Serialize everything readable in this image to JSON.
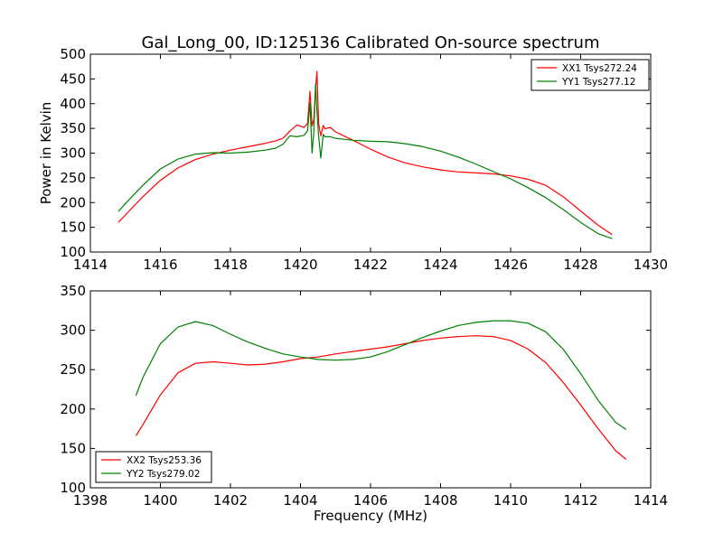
{
  "title": "Gal_Long_00, ID:125136 Calibrated On-source spectrum",
  "colors": {
    "red": "#ff0000",
    "green": "#008000",
    "axes": "#000000",
    "background": "#ffffff"
  },
  "chart_data": [
    {
      "type": "line",
      "title": "Gal_Long_00, ID:125136 Calibrated On-source spectrum",
      "xlabel": "",
      "ylabel": "Power in Kelvin",
      "xlim": [
        1414,
        1430
      ],
      "ylim": [
        100,
        500
      ],
      "xticks": [
        "1414",
        "1416",
        "1418",
        "1420",
        "1422",
        "1424",
        "1426",
        "1428",
        "1430"
      ],
      "yticks": [
        "100",
        "150",
        "200",
        "250",
        "300",
        "350",
        "400",
        "450",
        "500"
      ],
      "grid": false,
      "legend_position": "top-right",
      "series": [
        {
          "name": "XX1 Tsys272.24",
          "color": "#ff0000",
          "x": [
            1414.8,
            1415.0,
            1415.5,
            1416.0,
            1416.5,
            1417.0,
            1417.5,
            1418.0,
            1418.5,
            1419.0,
            1419.3,
            1419.5,
            1419.7,
            1419.9,
            1420.1,
            1420.2,
            1420.27,
            1420.33,
            1420.38,
            1420.43,
            1420.47,
            1420.52,
            1420.58,
            1420.65,
            1420.7,
            1420.85,
            1421.0,
            1421.5,
            1422.0,
            1422.5,
            1423.0,
            1423.5,
            1424.0,
            1424.5,
            1425.0,
            1425.5,
            1426.0,
            1426.5,
            1427.0,
            1427.5,
            1428.0,
            1428.5,
            1428.9
          ],
          "y": [
            160,
            175,
            212,
            245,
            270,
            287,
            298,
            306,
            313,
            320,
            325,
            330,
            345,
            357,
            352,
            360,
            425,
            355,
            368,
            430,
            465,
            360,
            335,
            356,
            349,
            352,
            343,
            326,
            308,
            292,
            280,
            272,
            266,
            262,
            260,
            258,
            254,
            247,
            235,
            212,
            183,
            154,
            135
          ]
        },
        {
          "name": "YY1 Tsys277.12",
          "color": "#008000",
          "x": [
            1414.8,
            1415.0,
            1415.5,
            1416.0,
            1416.5,
            1417.0,
            1417.5,
            1418.0,
            1418.5,
            1419.0,
            1419.3,
            1419.5,
            1419.7,
            1419.9,
            1420.1,
            1420.2,
            1420.27,
            1420.33,
            1420.38,
            1420.43,
            1420.47,
            1420.52,
            1420.58,
            1420.65,
            1420.7,
            1420.85,
            1421.0,
            1421.5,
            1422.0,
            1422.5,
            1423.0,
            1423.5,
            1424.0,
            1424.5,
            1425.0,
            1425.5,
            1426.0,
            1426.5,
            1427.0,
            1427.5,
            1428.0,
            1428.5,
            1428.9
          ],
          "y": [
            182,
            198,
            235,
            268,
            288,
            298,
            301,
            300,
            302,
            306,
            310,
            318,
            335,
            333,
            336,
            345,
            402,
            300,
            342,
            440,
            385,
            333,
            290,
            338,
            333,
            333,
            330,
            326,
            324,
            323,
            319,
            313,
            304,
            292,
            278,
            263,
            248,
            230,
            210,
            186,
            160,
            137,
            127
          ]
        }
      ]
    },
    {
      "type": "line",
      "title": "",
      "xlabel": "Frequency (MHz)",
      "ylabel": "",
      "xlim": [
        1398,
        1414
      ],
      "ylim": [
        100,
        350
      ],
      "xticks": [
        "1398",
        "1400",
        "1402",
        "1404",
        "1406",
        "1408",
        "1410",
        "1412",
        "1414"
      ],
      "yticks": [
        "100",
        "150",
        "200",
        "250",
        "300",
        "350"
      ],
      "grid": false,
      "legend_position": "bottom-left",
      "series": [
        {
          "name": "XX2 Tsys253.36",
          "color": "#ff0000",
          "x": [
            1399.3,
            1399.5,
            1400.0,
            1400.5,
            1401.0,
            1401.5,
            1402.0,
            1402.5,
            1403.0,
            1403.5,
            1404.0,
            1404.5,
            1405.0,
            1405.5,
            1406.0,
            1406.5,
            1407.0,
            1407.5,
            1408.0,
            1408.5,
            1409.0,
            1409.5,
            1410.0,
            1410.5,
            1411.0,
            1411.5,
            1412.0,
            1412.5,
            1413.0,
            1413.3
          ],
          "y": [
            166,
            180,
            218,
            246,
            258,
            260,
            258,
            256,
            257,
            260,
            264,
            266,
            270,
            273,
            276,
            279,
            283,
            287,
            290,
            292,
            293,
            292,
            287,
            276,
            259,
            234,
            205,
            175,
            147,
            136
          ]
        },
        {
          "name": "YY2 Tsys279.02",
          "color": "#008000",
          "x": [
            1399.3,
            1399.5,
            1400.0,
            1400.5,
            1401.0,
            1401.5,
            1402.0,
            1402.5,
            1403.0,
            1403.5,
            1404.0,
            1404.5,
            1405.0,
            1405.5,
            1406.0,
            1406.5,
            1407.0,
            1407.5,
            1408.0,
            1408.5,
            1409.0,
            1409.5,
            1410.0,
            1410.5,
            1411.0,
            1411.5,
            1412.0,
            1412.5,
            1413.0,
            1413.3
          ],
          "y": [
            217,
            240,
            283,
            304,
            311,
            306,
            295,
            285,
            277,
            270,
            266,
            263,
            262,
            263,
            266,
            273,
            282,
            291,
            299,
            306,
            310,
            312,
            312,
            309,
            298,
            276,
            245,
            211,
            183,
            174
          ]
        }
      ]
    }
  ]
}
